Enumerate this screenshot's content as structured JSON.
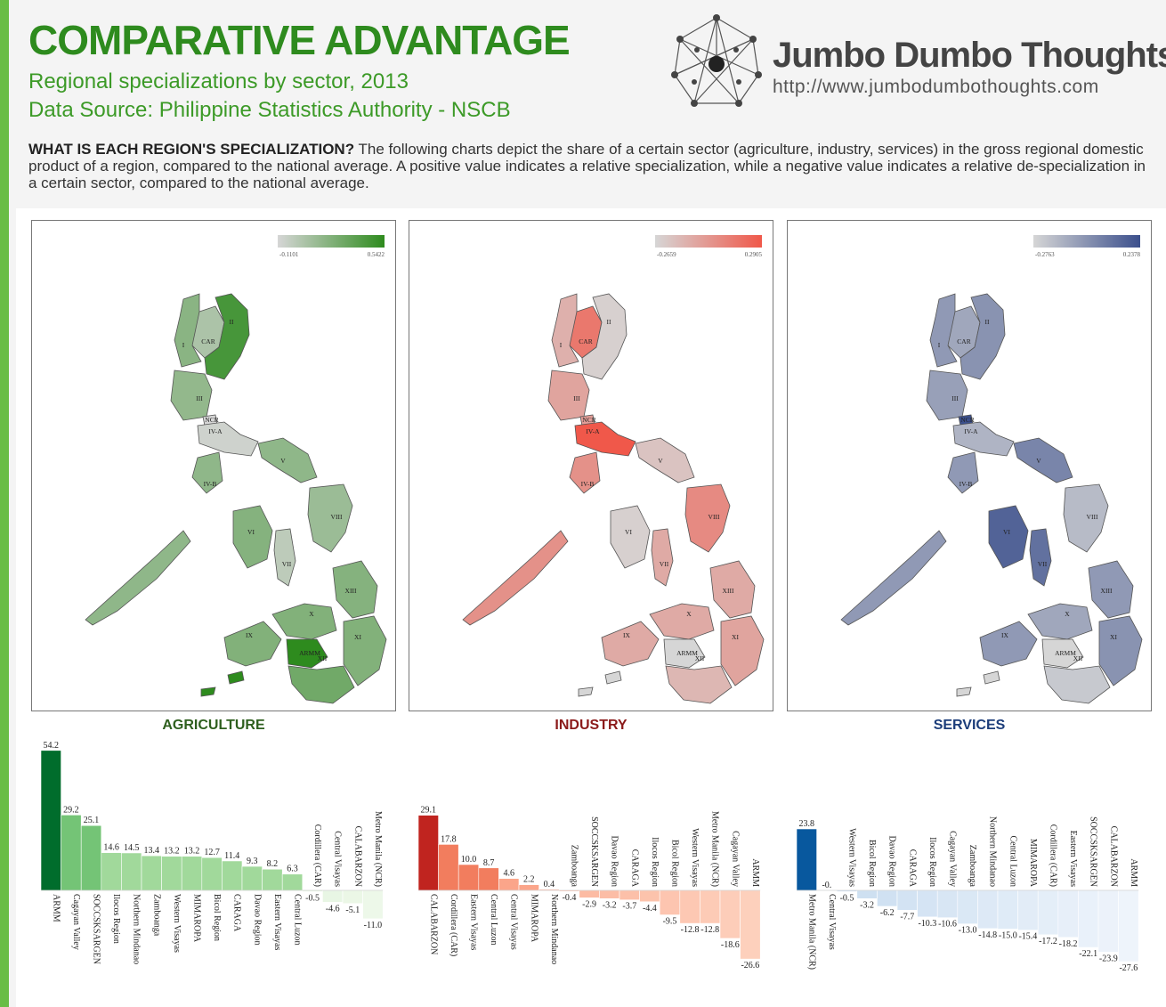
{
  "header": {
    "title": "COMPARATIVE ADVANTAGE",
    "subtitle": "Regional specializations by sector, 2013",
    "source": "Data Source: Philippine Statistics Authority - NSCB"
  },
  "logo": {
    "name": "Jumbo Dumbo Thoughts",
    "url": "http://www.jumbodumbothoughts.com",
    "icon": "network-logo-icon"
  },
  "intro": {
    "lead": "WHAT IS EACH REGION'S SPECIALIZATION?",
    "text": " The following charts depict the share of a certain sector (agriculture, industry, services) in the gross regional domestic product of a region, compared to the national average. A positive value indicates a relative specialization, while a negative value indicates a relative de-specialization in a certain sector, compared to the national average."
  },
  "map_region_labels": [
    "CAR",
    "II",
    "I",
    "III",
    "NCR",
    "IV-A",
    "IV-B",
    "V",
    "VI",
    "VII",
    "VIII",
    "IX",
    "X",
    "XI",
    "XII",
    "XIII",
    "ARMM"
  ],
  "chart_data": [
    {
      "type": "bar",
      "sector": "AGRICULTURE",
      "color": "#2e5f1e",
      "legend": {
        "min": "-0.1101",
        "max": "0.5422",
        "low_color": "#d6d6d6",
        "high_color": "#2e8b1e"
      },
      "categories": [
        "ARMM",
        "Cagayan Valley",
        "SOCCSKSARGEN",
        "Ilocos Region",
        "Northern Mindanao",
        "Zamboanga",
        "Western Visayas",
        "MIMAROPA",
        "Bicol Region",
        "CARAGA",
        "Davao Region",
        "Eastern Visayas",
        "Central Luzon",
        "Cordillera (CAR)",
        "Central Visayas",
        "CALABARZON",
        "Metro Manila (NCR)"
      ],
      "values": [
        54.2,
        29.2,
        25.1,
        14.6,
        14.5,
        13.4,
        13.2,
        13.2,
        12.7,
        11.4,
        9.3,
        8.2,
        6.3,
        -0.5,
        -4.6,
        -5.1,
        -11.0
      ],
      "labels": [
        "54.2",
        "29.2",
        "25.1",
        "14.6",
        "14.5",
        "13.4",
        "13.2",
        "13.2",
        "12.7",
        "11.4",
        "9.3",
        "8.2",
        "6.3",
        "-0.5",
        "-4.6",
        "-5.1",
        "-11.0"
      ],
      "bar_colors": {
        "top": "#006d2c",
        "high": "#74c476",
        "mid": "#a1d99b",
        "low": "#c7e9c0",
        "neg": "#edf8e9"
      }
    },
    {
      "type": "bar",
      "sector": "INDUSTRY",
      "color": "#8b1a1a",
      "legend": {
        "min": "-0.2659",
        "max": "0.2905",
        "low_color": "#d6d6d6",
        "high_color": "#f0584a"
      },
      "categories": [
        "CALABARZON",
        "Cordillera (CAR)",
        "Eastern Visayas",
        "Central Luzon",
        "Central Visayas",
        "MIMAROPA",
        "Northern Mindanao",
        "Zamboanga",
        "SOCCSKSARGEN",
        "Davao Region",
        "CARAGA",
        "Ilocos Region",
        "Bicol Region",
        "Western Visayas",
        "Metro Manila (NCR)",
        "Cagayan Valley",
        "ARMM"
      ],
      "values": [
        29.1,
        17.8,
        10.0,
        8.7,
        4.6,
        2.2,
        0.4,
        -0.4,
        -2.9,
        -3.2,
        -3.7,
        -4.4,
        -9.5,
        -12.8,
        -12.8,
        -18.6,
        -26.6
      ],
      "labels": [
        "29.1",
        "17.8",
        "10.0",
        "8.7",
        "4.6",
        "2.2",
        "0.4",
        "-0.4",
        "-2.9",
        "-3.2",
        "-3.7",
        "-4.4",
        "-9.5",
        "-12.8",
        "-12.8",
        "-18.6",
        "-26.6"
      ],
      "bar_colors": {
        "top": "#c0241f",
        "high": "#e0483a",
        "mid": "#f27d5e",
        "low": "#fba58a",
        "neg": "#fdd0bc"
      }
    },
    {
      "type": "bar",
      "sector": "SERVICES",
      "color": "#1c3d7a",
      "legend": {
        "min": "-0.2763",
        "max": "0.2378",
        "low_color": "#d6d6d6",
        "high_color": "#3b4f8c"
      },
      "categories": [
        "Metro Manila (NCR)",
        "Central Visayas",
        "Western Visayas",
        "Bicol Region",
        "Davao Region",
        "CARAGA",
        "Ilocos Region",
        "Cagayan Valley",
        "Zamboanga",
        "Northern Mindanao",
        "Central Luzon",
        "MIMAROPA",
        "Cordillera (CAR)",
        "Eastern Visayas",
        "SOCCSKSARGEN",
        "CALABARZON",
        "ARMM"
      ],
      "values": [
        23.8,
        -0.0,
        -0.5,
        -3.2,
        -6.2,
        -7.7,
        -10.3,
        -10.6,
        -13.0,
        -14.8,
        -15.0,
        -15.4,
        -17.2,
        -18.2,
        -22.1,
        -23.9,
        -27.6
      ],
      "labels": [
        "23.8",
        "-0.",
        "-0.5",
        "-3.2",
        "-6.2",
        "-7.7",
        "-10.3",
        "-10.6",
        "-13.0",
        "-14.8",
        "-15.0",
        "-15.4",
        "-17.2",
        "-18.2",
        "-22.1",
        "-23.9",
        "-27.6"
      ],
      "bar_colors": {
        "top": "#08589e",
        "high": "#6fa8d6",
        "mid": "#a6c8e6",
        "low": "#c6dbef",
        "neg": "#eef4fb"
      }
    }
  ]
}
